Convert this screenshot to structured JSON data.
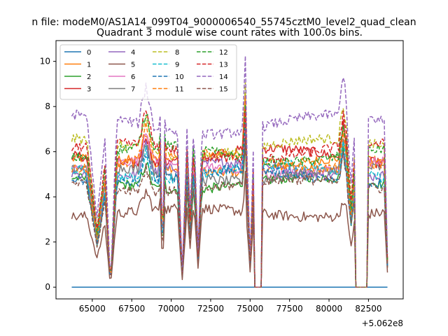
{
  "chart_data": {
    "type": "line",
    "suptitle": "n file: modeM0/AS1A14_099T04_9000006540_55745cztM0_level2_quad_clean",
    "title": "Quadrant 3 module wise count rates with 100.0s bins.",
    "xlabel": "",
    "ylabel": "",
    "offset_label": "+5.062e8",
    "xlim": [
      62700,
      84700
    ],
    "ylim": [
      -0.52,
      10.92
    ],
    "xticks": [
      65000,
      67500,
      70000,
      72500,
      75000,
      77500,
      80000,
      82500
    ],
    "xtick_labels": [
      "65000",
      "67500",
      "70000",
      "72500",
      "75000",
      "77500",
      "80000",
      "82500"
    ],
    "yticks": [
      0,
      2,
      4,
      6,
      8,
      10
    ],
    "ytick_labels": [
      "0",
      "2",
      "4",
      "6",
      "8",
      "10"
    ],
    "x_start": 63700,
    "x_end": 83700,
    "bin": 100,
    "legend_position": "upper-left",
    "series": [
      {
        "name": "0",
        "color": "#1f77b4",
        "dash": "solid",
        "base": 0.0
      },
      {
        "name": "1",
        "color": "#ff7f0e",
        "dash": "solid",
        "base": 5.4
      },
      {
        "name": "2",
        "color": "#2ca02c",
        "dash": "solid",
        "base": 4.6
      },
      {
        "name": "3",
        "color": "#d62728",
        "dash": "solid",
        "base": 5.8
      },
      {
        "name": "4",
        "color": "#9467bd",
        "dash": "solid",
        "base": 5.2
      },
      {
        "name": "5",
        "color": "#8c564b",
        "dash": "solid",
        "base": 3.3
      },
      {
        "name": "6",
        "color": "#e377c2",
        "dash": "solid",
        "base": 5.3
      },
      {
        "name": "7",
        "color": "#7f7f7f",
        "dash": "solid",
        "base": 5.0
      },
      {
        "name": "8",
        "color": "#bcbd22",
        "dash": "dashed",
        "base": 6.2
      },
      {
        "name": "9",
        "color": "#17becf",
        "dash": "dashed",
        "base": 5.1
      },
      {
        "name": "10",
        "color": "#1f77b4",
        "dash": "dashed",
        "base": 4.9
      },
      {
        "name": "11",
        "color": "#ff7f0e",
        "dash": "dashed",
        "base": 5.6
      },
      {
        "name": "12",
        "color": "#2ca02c",
        "dash": "dashed",
        "base": 5.9
      },
      {
        "name": "13",
        "color": "#d62728",
        "dash": "dashed",
        "base": 6.0
      },
      {
        "name": "14",
        "color": "#9467bd",
        "dash": "dashed",
        "base": 7.2
      },
      {
        "name": "15",
        "color": "#8c564b",
        "dash": "dashed",
        "base": 4.5
      }
    ],
    "events": [
      {
        "x": 65300,
        "depth": 0.4,
        "width": 650
      },
      {
        "x": 66150,
        "depth": 0.0,
        "width": 400
      },
      {
        "x": 68400,
        "boost": 1.25,
        "width": 500
      },
      {
        "x": 69450,
        "depth": 0.0,
        "width": 120
      },
      {
        "x": 69450,
        "boost": 1.3,
        "width": 200
      },
      {
        "x": 70700,
        "depth": 0.1,
        "width": 300
      },
      {
        "x": 71200,
        "depth": 0.5,
        "width": 200
      },
      {
        "x": 71700,
        "depth": 0.25,
        "width": 250
      },
      {
        "x": 74700,
        "boost": 1.45,
        "width": 180
      },
      {
        "x": 75000,
        "depth": 0.2,
        "width": 250
      },
      {
        "x": 75400,
        "zero": [
          75300,
          75700
        ]
      },
      {
        "x": 80900,
        "boost": 1.25,
        "width": 300
      },
      {
        "x": 81400,
        "depth": 0.6,
        "width": 300
      },
      {
        "x": 82300,
        "zero": [
          81700,
          82400
        ]
      },
      {
        "x": 83700,
        "depth": 0.2,
        "width": 200
      }
    ]
  }
}
